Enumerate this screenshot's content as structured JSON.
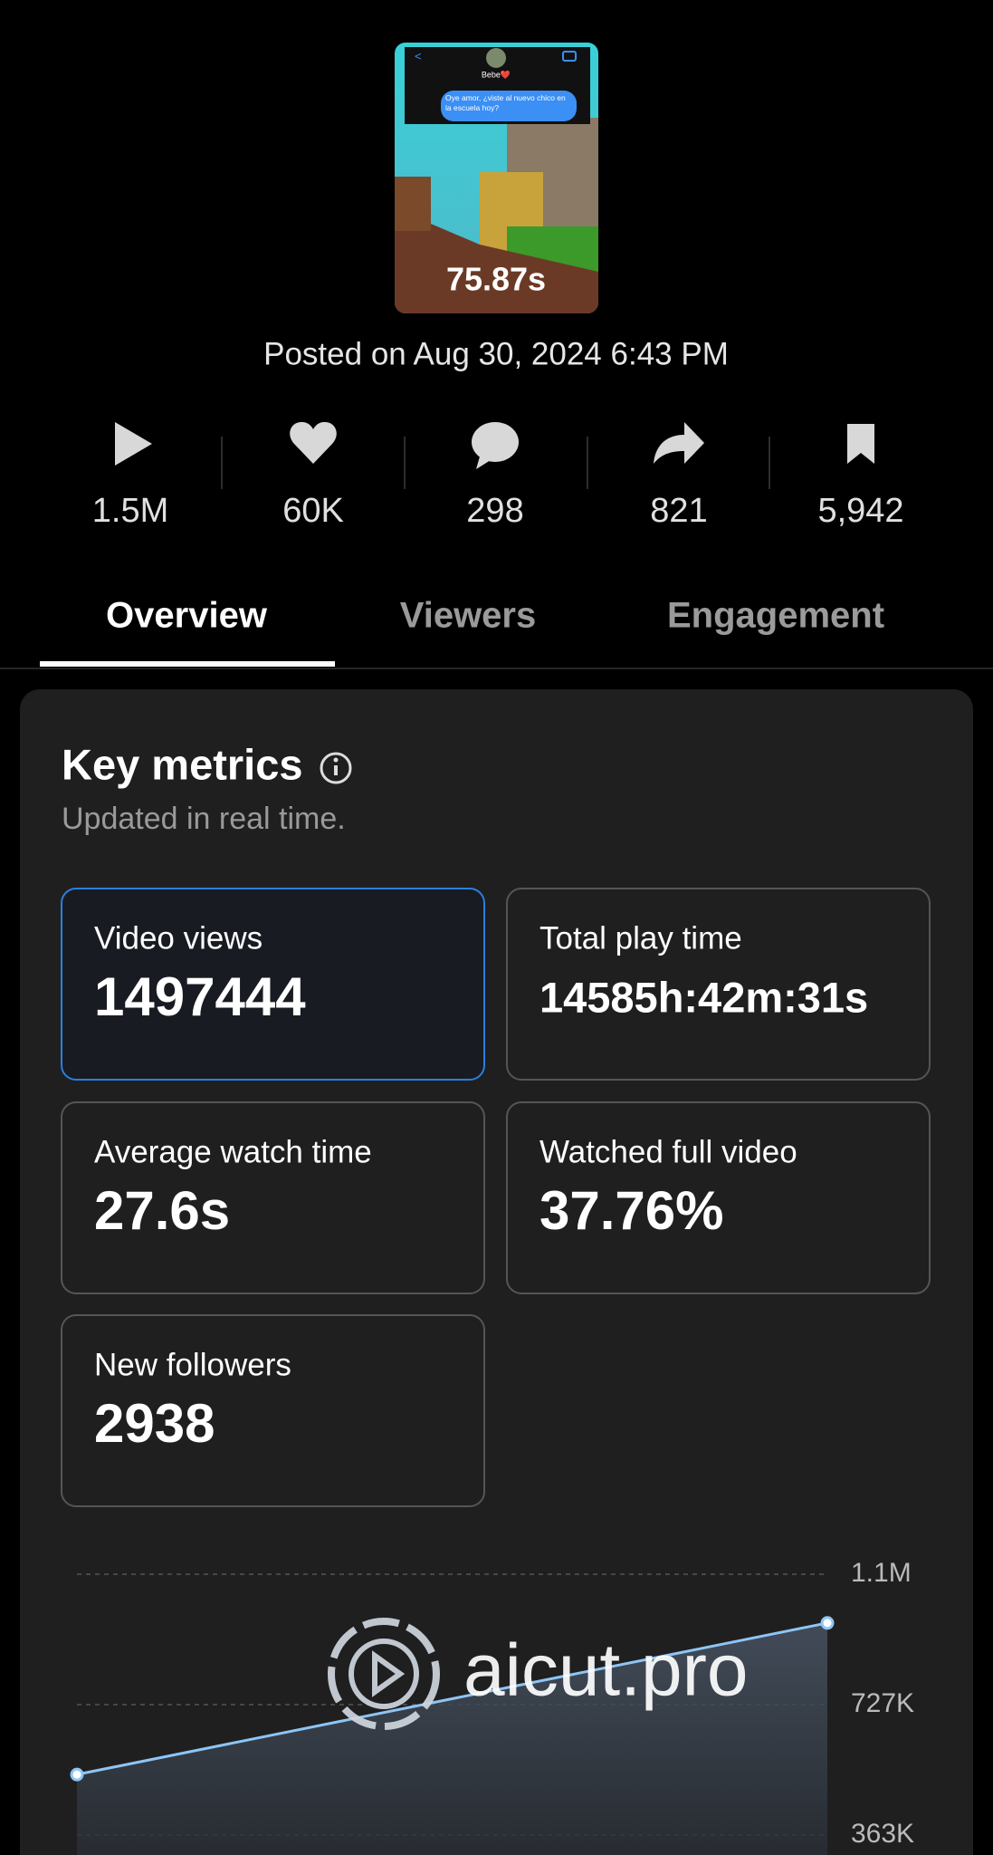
{
  "header": {
    "contact": "Bebe❤️",
    "message": "Oye amor, ¿viste al nuevo chico en la escuela hoy?",
    "duration": "75.87s",
    "posted": "Posted on Aug 30, 2024 6:43 PM"
  },
  "stats": [
    "1.5M",
    "60K",
    "298",
    "821",
    "5,942"
  ],
  "tabs": [
    "Overview",
    "Viewers",
    "Engagement"
  ],
  "key_metrics": {
    "title": "Key metrics",
    "subtitle": "Updated in real time.",
    "cards": [
      {
        "label": "Video views",
        "value": "1497444"
      },
      {
        "label": "Total play time",
        "value": "14585h:42m:31s"
      },
      {
        "label": "Average watch time",
        "value": "27.6s"
      },
      {
        "label": "Watched full video",
        "value": "37.76%"
      },
      {
        "label": "New followers",
        "value": "2938"
      }
    ]
  },
  "chart_data": {
    "type": "line",
    "categories": [
      null,
      null
    ],
    "values": [
      532000,
      955000
    ],
    "color": "#8ec5f5",
    "ylim": [
      307000,
      1091000
    ],
    "yticks": [
      {
        "value": 1091000,
        "label": "1.1M"
      },
      {
        "value": 727000,
        "label": "727K"
      },
      {
        "value": 363000,
        "label": "363K"
      }
    ],
    "grid": true
  },
  "watermark": "aicut.pro"
}
